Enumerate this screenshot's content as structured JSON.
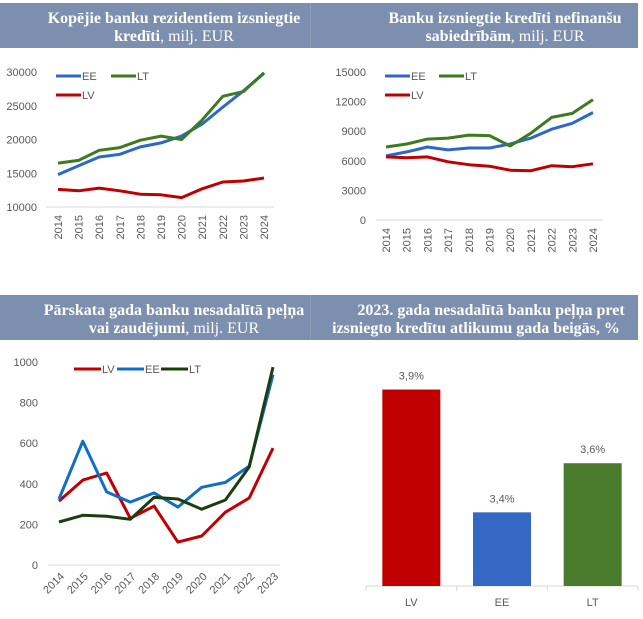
{
  "chart_data": [
    {
      "id": "chart1",
      "type": "line",
      "title_bold": "Kopējie banku rezidentiem izsniegtie kredīti",
      "title_rest": ", milj. EUR",
      "xlabel": "",
      "ylabel": "",
      "x": [
        "2014",
        "2015",
        "2016",
        "2017",
        "2018",
        "2019",
        "2020",
        "2021",
        "2022",
        "2023",
        "2024"
      ],
      "ylim": [
        10000,
        30000
      ],
      "yticks": [
        "10000",
        "15000",
        "20000",
        "25000",
        "30000"
      ],
      "ytick_values": [
        10000,
        15000,
        20000,
        25000,
        30000
      ],
      "grid": false,
      "legend_position": "top-left",
      "series": [
        {
          "name": "EE",
          "color": "#2e67c8",
          "values": [
            14800,
            16100,
            17400,
            17800,
            18900,
            19500,
            20500,
            22300,
            24800,
            27200,
            29800
          ]
        },
        {
          "name": "LT",
          "color": "#3e7a1e",
          "values": [
            16500,
            16900,
            18400,
            18800,
            19900,
            20500,
            20000,
            22900,
            26400,
            27100,
            29900
          ]
        },
        {
          "name": "LV",
          "color": "#c00000",
          "values": [
            12600,
            12400,
            12800,
            12400,
            11900,
            11800,
            11400,
            12700,
            13700,
            13850,
            14300
          ]
        }
      ]
    },
    {
      "id": "chart2",
      "type": "line",
      "title_bold": "Banku izsniegtie kredīti nefinanšu sabiedrībām",
      "title_rest": ", milj. EUR",
      "xlabel": "",
      "ylabel": "",
      "x": [
        "2014",
        "2015",
        "2016",
        "2017",
        "2018",
        "2019",
        "2020",
        "2021",
        "2022",
        "2023",
        "2024"
      ],
      "ylim": [
        0,
        15000
      ],
      "yticks": [
        "0",
        "3000",
        "6000",
        "9000",
        "12000",
        "15000"
      ],
      "ytick_values": [
        0,
        3000,
        6000,
        9000,
        12000,
        15000
      ],
      "grid": false,
      "legend_position": "top-left",
      "series": [
        {
          "name": "EE",
          "color": "#2e67c8",
          "values": [
            6500,
            6900,
            7400,
            7100,
            7300,
            7300,
            7700,
            8300,
            9200,
            9800,
            10900
          ]
        },
        {
          "name": "LT",
          "color": "#3e7a1e",
          "values": [
            7400,
            7700,
            8200,
            8300,
            8600,
            8550,
            7500,
            8800,
            10400,
            10800,
            12200
          ]
        },
        {
          "name": "LV",
          "color": "#c00000",
          "values": [
            6400,
            6300,
            6400,
            5900,
            5600,
            5450,
            5050,
            5000,
            5500,
            5400,
            5700
          ]
        }
      ]
    },
    {
      "id": "chart3",
      "type": "line",
      "title_bold": "Pārskata gada banku nesadalītā peļņa vai zaudējumi",
      "title_rest": ", milj. EUR",
      "xlabel": "",
      "ylabel": "",
      "x": [
        "2014",
        "2015",
        "2016",
        "2017",
        "2018",
        "2019",
        "2020",
        "2021",
        "2022",
        "2023"
      ],
      "ylim": [
        0,
        1000
      ],
      "yticks": [
        "0",
        "200",
        "400",
        "600",
        "800",
        "1000"
      ],
      "ytick_values": [
        0,
        200,
        400,
        600,
        800,
        1000
      ],
      "grid": false,
      "legend_position": "top",
      "series": [
        {
          "name": "LV",
          "color": "#c00000",
          "values": [
            315,
            418,
            453,
            230,
            290,
            113,
            143,
            260,
            330,
            576
          ]
        },
        {
          "name": "EE",
          "color": "#0f6fc6",
          "values": [
            325,
            610,
            360,
            310,
            355,
            285,
            383,
            407,
            487,
            937
          ]
        },
        {
          "name": "LT",
          "color": "#1e3d0f",
          "values": [
            212,
            245,
            240,
            225,
            333,
            325,
            275,
            320,
            483,
            975
          ]
        }
      ]
    },
    {
      "id": "chart4",
      "type": "bar",
      "title_line1": "2023. gada nesadalītā banku peļņa pret",
      "title_line2": "izsniegto kredītu atlikumu gada beigās, %",
      "xlabel": "",
      "ylabel": "",
      "categories": [
        "LV",
        "EE",
        "LT"
      ],
      "values": [
        3.9,
        3.4,
        3.6
      ],
      "data_labels": [
        "3,9%",
        "3,4%",
        "3,6%"
      ],
      "colors": [
        "#c00000",
        "#3567c4",
        "#4a7a2c"
      ],
      "ylim": [
        3.1,
        4.0
      ],
      "grid": false,
      "legend_position": "none"
    }
  ]
}
